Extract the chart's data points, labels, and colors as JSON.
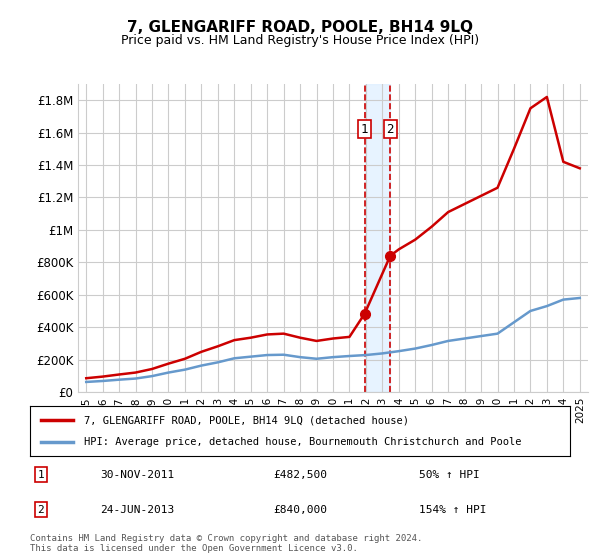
{
  "title": "7, GLENGARIFF ROAD, POOLE, BH14 9LQ",
  "subtitle": "Price paid vs. HM Land Registry's House Price Index (HPI)",
  "hpi_label": "HPI: Average price, detached house, Bournemouth Christchurch and Poole",
  "property_label": "7, GLENGARIFF ROAD, POOLE, BH14 9LQ (detached house)",
  "footer": "Contains HM Land Registry data © Crown copyright and database right 2024.\nThis data is licensed under the Open Government Licence v3.0.",
  "sale1_date": "30-NOV-2011",
  "sale1_price": 482500,
  "sale1_pct": "50% ↑ HPI",
  "sale2_date": "24-JUN-2013",
  "sale2_price": 840000,
  "sale2_pct": "154% ↑ HPI",
  "property_color": "#cc0000",
  "hpi_color": "#6699cc",
  "background_color": "#ffffff",
  "grid_color": "#cccccc",
  "annotation_bg": "#ddeeff",
  "annotation_border": "#cc0000",
  "ylim": [
    0,
    1900000
  ],
  "yticks": [
    0,
    200000,
    400000,
    600000,
    800000,
    1000000,
    1200000,
    1400000,
    1600000,
    1800000
  ],
  "ytick_labels": [
    "£0",
    "£200K",
    "£400K",
    "£600K",
    "£800K",
    "£1M",
    "£1.2M",
    "£1.4M",
    "£1.6M",
    "£1.8M"
  ],
  "hpi_years": [
    1995,
    1996,
    1997,
    1998,
    1999,
    2000,
    2001,
    2002,
    2003,
    2004,
    2005,
    2006,
    2007,
    2008,
    2009,
    2010,
    2011,
    2012,
    2013,
    2014,
    2015,
    2016,
    2017,
    2018,
    2019,
    2020,
    2021,
    2022,
    2023,
    2024,
    2025
  ],
  "hpi_values": [
    62000,
    68000,
    76000,
    83000,
    98000,
    120000,
    138000,
    163000,
    183000,
    208000,
    218000,
    228000,
    230000,
    215000,
    205000,
    215000,
    222000,
    228000,
    238000,
    252000,
    268000,
    290000,
    315000,
    330000,
    345000,
    360000,
    430000,
    500000,
    530000,
    570000,
    580000
  ],
  "prop_years": [
    1995,
    1996,
    1997,
    1998,
    1999,
    2000,
    2001,
    2002,
    2003,
    2004,
    2005,
    2006,
    2007,
    2008,
    2009,
    2010,
    2011,
    2011.92,
    2013.48,
    2014,
    2015,
    2016,
    2017,
    2018,
    2019,
    2020,
    2021,
    2022,
    2023,
    2024,
    2025
  ],
  "prop_values": [
    85000,
    95000,
    108000,
    120000,
    142000,
    175000,
    205000,
    248000,
    282000,
    320000,
    335000,
    355000,
    360000,
    335000,
    315000,
    330000,
    340000,
    482500,
    840000,
    880000,
    940000,
    1020000,
    1110000,
    1160000,
    1210000,
    1260000,
    1500000,
    1750000,
    1820000,
    1420000,
    1380000
  ],
  "sale1_x": 2011.92,
  "sale2_x": 2013.48,
  "xtick_years": [
    1995,
    1996,
    1997,
    1998,
    1999,
    2000,
    2001,
    2002,
    2003,
    2004,
    2005,
    2006,
    2007,
    2008,
    2009,
    2010,
    2011,
    2012,
    2013,
    2014,
    2015,
    2016,
    2017,
    2018,
    2019,
    2020,
    2021,
    2022,
    2023,
    2024,
    2025
  ]
}
